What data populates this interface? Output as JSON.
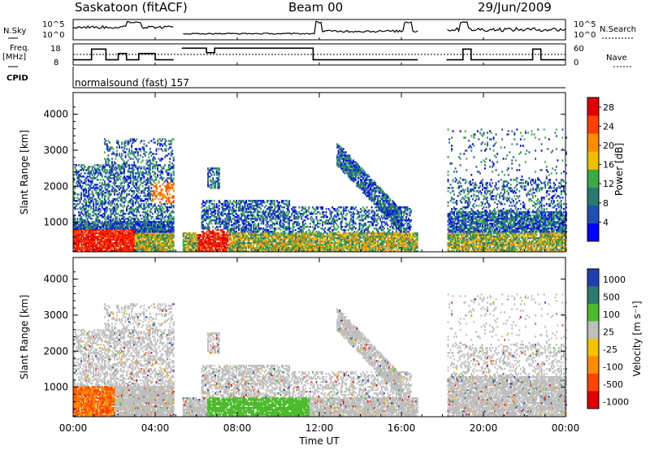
{
  "header": {
    "station": "Saskatoon (fitACF)",
    "beam": "Beam 00",
    "date": "29/Jun/2009"
  },
  "summary_panels": {
    "nsky_label": "N.Sky",
    "freq_label_line1": "Freq.",
    "freq_label_line2": "[MHz]",
    "cpid_label": "CPID",
    "nsearch_label": "N.Search",
    "nave_label": "Nave",
    "nsky_ticks": [
      "10^5",
      "10^0"
    ],
    "freq_ticks": [
      "18",
      "8"
    ],
    "nave_ticks": [
      "60",
      "0"
    ],
    "cpid_text": "normalsound (fast) 157"
  },
  "chart_data": [
    {
      "type": "heatmap",
      "quantity": "power",
      "ylabel": "Slant Range [km]",
      "xlabel": "Time UT",
      "x_ticks": [
        "00:00",
        "04:00",
        "08:00",
        "12:00",
        "16:00",
        "20:00",
        "00:00"
      ],
      "x_range_hours": [
        0,
        24
      ],
      "y_ticks": [
        1000,
        2000,
        3000,
        4000
      ],
      "ylim": [
        180,
        4600
      ],
      "colorbar_label": "Power [dB]",
      "colorbar_ticks": [
        4,
        8,
        12,
        16,
        20,
        24,
        28
      ],
      "colorbar_range": [
        0,
        30
      ],
      "data_gaps_hours": [
        [
          4.9,
          5.3
        ],
        [
          16.8,
          18.2
        ]
      ]
    },
    {
      "type": "heatmap",
      "quantity": "velocity",
      "ylabel": "Slant Range [km]",
      "xlabel": "Time UT",
      "x_ticks": [
        "00:00",
        "04:00",
        "08:00",
        "12:00",
        "16:00",
        "20:00",
        "00:00"
      ],
      "x_range_hours": [
        0,
        24
      ],
      "y_ticks": [
        1000,
        2000,
        3000,
        4000
      ],
      "ylim": [
        180,
        4600
      ],
      "colorbar_label": "Velocity [m s⁻¹]",
      "colorbar_ticks": [
        "1000",
        "500",
        "100",
        "25",
        "-25",
        "-100",
        "-500",
        "-1000"
      ],
      "data_gaps_hours": [
        [
          4.9,
          5.3
        ],
        [
          16.8,
          18.2
        ]
      ]
    }
  ],
  "colors": {
    "power_scale": [
      "#0000ff",
      "#1f4fb0",
      "#2a7a70",
      "#3aaa46",
      "#f0c000",
      "#ff8c00",
      "#ff4000",
      "#e00000"
    ],
    "velocity_scale": [
      "#1f3fb0",
      "#2e7a6e",
      "#4cbb2c",
      "#bebebe",
      "#f5c200",
      "#ff8c00",
      "#ff4500",
      "#e00000"
    ]
  }
}
